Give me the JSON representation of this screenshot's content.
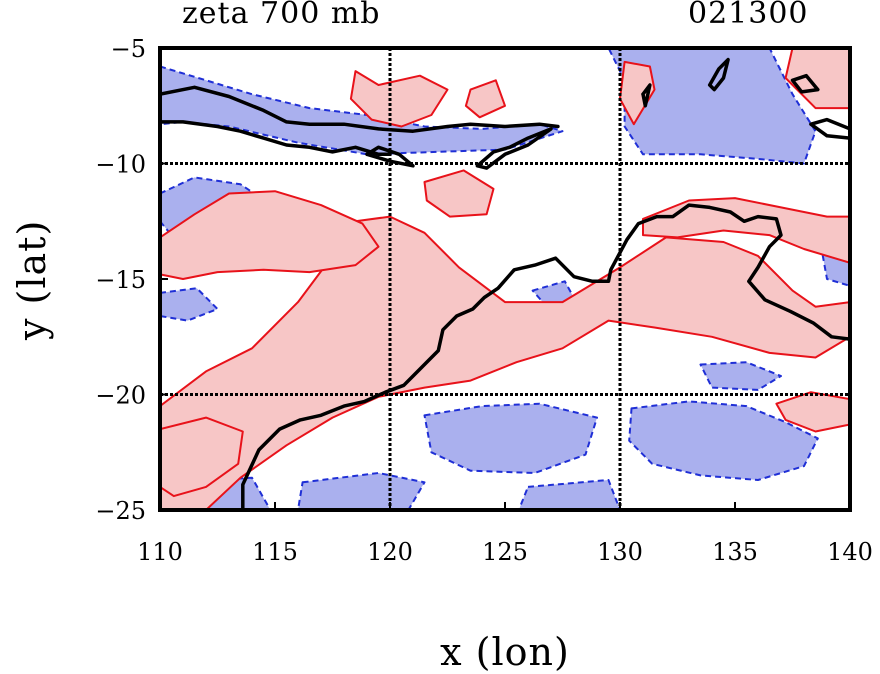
{
  "chart_data": {
    "type": "contour",
    "title_left": "zeta 700 mb",
    "title_right": "021300",
    "xlabel": "x (lon)",
    "ylabel": "y (lat)",
    "xlim": [
      110,
      140
    ],
    "ylim": [
      -25,
      -5
    ],
    "xticks": [
      110,
      115,
      120,
      125,
      130,
      135,
      140
    ],
    "yticks": [
      -5,
      -10,
      -15,
      -20,
      -25
    ],
    "gridlines_x": [
      120,
      130
    ],
    "gridlines_y": [
      -10,
      -20
    ],
    "grid": true,
    "colors": {
      "positive_contour": "#e8121a",
      "positive_fill": "#f7c6c6",
      "negative_contour": "#1f2fd6",
      "negative_fill": "#aab0ee",
      "coastline": "#000000"
    },
    "coastline": [
      [
        [
          113.6,
          -25
        ],
        [
          113.6,
          -23.9
        ],
        [
          114.3,
          -22.4
        ],
        [
          115.2,
          -21.5
        ],
        [
          116.1,
          -21.1
        ],
        [
          117.0,
          -20.9
        ],
        [
          118.0,
          -20.5
        ],
        [
          118.9,
          -20.3
        ],
        [
          119.8,
          -19.9
        ],
        [
          120.6,
          -19.6
        ],
        [
          121.3,
          -18.9
        ],
        [
          122.1,
          -18.1
        ],
        [
          122.3,
          -17.2
        ],
        [
          122.9,
          -16.6
        ],
        [
          123.6,
          -16.3
        ],
        [
          124.1,
          -15.8
        ],
        [
          124.7,
          -15.4
        ],
        [
          125.4,
          -14.6
        ],
        [
          126.3,
          -14.4
        ],
        [
          127.2,
          -14.1
        ],
        [
          128.0,
          -14.9
        ],
        [
          128.8,
          -15.1
        ],
        [
          129.5,
          -15.1
        ],
        [
          129.6,
          -14.6
        ],
        [
          130.3,
          -13.3
        ],
        [
          130.8,
          -12.6
        ],
        [
          131.6,
          -12.3
        ],
        [
          132.3,
          -12.3
        ],
        [
          133.0,
          -11.8
        ],
        [
          133.9,
          -11.9
        ],
        [
          134.8,
          -12.1
        ],
        [
          135.4,
          -12.5
        ],
        [
          136.0,
          -12.3
        ],
        [
          136.8,
          -12.4
        ],
        [
          137.0,
          -13.1
        ],
        [
          136.5,
          -13.6
        ],
        [
          136.0,
          -14.5
        ],
        [
          135.6,
          -15.1
        ],
        [
          136.3,
          -15.9
        ],
        [
          137.4,
          -16.4
        ],
        [
          138.4,
          -16.9
        ],
        [
          139.2,
          -17.5
        ],
        [
          140.0,
          -17.6
        ]
      ],
      [
        [
          110.0,
          -7.0
        ],
        [
          111.5,
          -6.7
        ],
        [
          113.0,
          -7.1
        ],
        [
          114.5,
          -7.7
        ],
        [
          115.5,
          -8.2
        ],
        [
          116.5,
          -8.3
        ],
        [
          118.0,
          -8.3
        ],
        [
          119.5,
          -8.5
        ],
        [
          121.0,
          -8.6
        ],
        [
          122.5,
          -8.4
        ],
        [
          123.5,
          -8.3
        ],
        [
          125.0,
          -8.4
        ],
        [
          126.5,
          -8.3
        ],
        [
          127.3,
          -8.4
        ]
      ],
      [
        [
          110.0,
          -8.2
        ],
        [
          111.0,
          -8.2
        ],
        [
          112.5,
          -8.4
        ],
        [
          113.5,
          -8.6
        ],
        [
          114.5,
          -8.9
        ],
        [
          115.5,
          -9.2
        ],
        [
          116.5,
          -9.3
        ],
        [
          117.5,
          -9.5
        ],
        [
          118.5,
          -9.3
        ],
        [
          119.5,
          -9.6
        ],
        [
          120.0,
          -9.6
        ]
      ],
      [
        [
          123.8,
          -10.1
        ],
        [
          124.5,
          -9.5
        ],
        [
          125.2,
          -9.3
        ],
        [
          126.0,
          -8.9
        ],
        [
          127.0,
          -8.5
        ],
        [
          126.0,
          -9.2
        ],
        [
          125.0,
          -9.6
        ],
        [
          124.2,
          -10.2
        ],
        [
          123.8,
          -10.1
        ]
      ],
      [
        [
          119.0,
          -9.6
        ],
        [
          120.0,
          -9.9
        ],
        [
          121.0,
          -10.1
        ],
        [
          120.4,
          -9.6
        ],
        [
          119.5,
          -9.3
        ],
        [
          119.0,
          -9.6
        ]
      ],
      [
        [
          131.0,
          -7.0
        ],
        [
          131.3,
          -6.6
        ],
        [
          131.1,
          -7.5
        ],
        [
          131.0,
          -7.0
        ]
      ],
      [
        [
          133.9,
          -6.6
        ],
        [
          134.3,
          -5.9
        ],
        [
          134.7,
          -5.5
        ],
        [
          134.5,
          -6.3
        ],
        [
          134.1,
          -6.8
        ],
        [
          133.9,
          -6.6
        ]
      ],
      [
        [
          138.3,
          -8.3
        ],
        [
          139.0,
          -8.1
        ],
        [
          140.0,
          -8.5
        ],
        [
          140.0,
          -8.9
        ],
        [
          139.0,
          -8.8
        ],
        [
          138.3,
          -8.3
        ]
      ],
      [
        [
          137.5,
          -6.4
        ],
        [
          138.1,
          -6.2
        ],
        [
          138.6,
          -6.8
        ],
        [
          137.9,
          -6.9
        ],
        [
          137.5,
          -6.4
        ]
      ]
    ],
    "positive_regions": [
      [
        [
          110,
          -25
        ],
        [
          110,
          -20.5
        ],
        [
          112,
          -19
        ],
        [
          114,
          -18
        ],
        [
          116,
          -16
        ],
        [
          117.5,
          -14
        ],
        [
          118.5,
          -12.5
        ],
        [
          120,
          -12.3
        ],
        [
          121.5,
          -13
        ],
        [
          123,
          -14.5
        ],
        [
          125,
          -16
        ],
        [
          127.5,
          -16
        ],
        [
          130,
          -14.5
        ],
        [
          132,
          -13.2
        ],
        [
          134.5,
          -13.4
        ],
        [
          136,
          -14
        ],
        [
          137.5,
          -15.5
        ],
        [
          138.5,
          -16.2
        ],
        [
          140,
          -16
        ],
        [
          140,
          -17.5
        ],
        [
          138.5,
          -18.4
        ],
        [
          136.5,
          -18.2
        ],
        [
          134,
          -17.5
        ],
        [
          131.5,
          -17.1
        ],
        [
          129.5,
          -16.8
        ],
        [
          127.5,
          -18
        ],
        [
          125.5,
          -18.6
        ],
        [
          123.5,
          -19.4
        ],
        [
          121.5,
          -19.7
        ],
        [
          119.5,
          -20.1
        ],
        [
          117.5,
          -21
        ],
        [
          115.5,
          -22.2
        ],
        [
          113.5,
          -23.6
        ],
        [
          112,
          -25
        ]
      ],
      [
        [
          110,
          -13.2
        ],
        [
          111.5,
          -12.2
        ],
        [
          113,
          -11.3
        ],
        [
          115,
          -11.2
        ],
        [
          117,
          -11.8
        ],
        [
          118.8,
          -12.6
        ],
        [
          119.5,
          -13.6
        ],
        [
          118.5,
          -14.4
        ],
        [
          116.5,
          -14.7
        ],
        [
          114.5,
          -14.6
        ],
        [
          112.5,
          -14.7
        ],
        [
          111,
          -15
        ],
        [
          110,
          -14.8
        ]
      ],
      [
        [
          131,
          -12.4
        ],
        [
          133,
          -11.6
        ],
        [
          135,
          -11.5
        ],
        [
          137,
          -11.9
        ],
        [
          139,
          -12.3
        ],
        [
          140,
          -12.3
        ],
        [
          140,
          -14.3
        ],
        [
          138,
          -13.7
        ],
        [
          136.5,
          -13.1
        ],
        [
          134.5,
          -12.9
        ],
        [
          132.5,
          -13.2
        ],
        [
          131,
          -13.1
        ]
      ],
      [
        [
          118.5,
          -6
        ],
        [
          119.5,
          -6.6
        ],
        [
          121.3,
          -6.2
        ],
        [
          122.5,
          -6.8
        ],
        [
          121.8,
          -7.9
        ],
        [
          120.5,
          -8.4
        ],
        [
          119.2,
          -8.1
        ],
        [
          118.3,
          -7.2
        ]
      ],
      [
        [
          123.5,
          -6.8
        ],
        [
          124.6,
          -6.4
        ],
        [
          125,
          -7.5
        ],
        [
          123.9,
          -8.0
        ],
        [
          123.3,
          -7.5
        ]
      ],
      [
        [
          130.2,
          -5.6
        ],
        [
          131.3,
          -5.8
        ],
        [
          131.5,
          -6.8
        ],
        [
          130.6,
          -8.3
        ],
        [
          130.0,
          -7.2
        ]
      ],
      [
        [
          137.5,
          -5
        ],
        [
          140,
          -5
        ],
        [
          140,
          -7.6
        ],
        [
          138.5,
          -7.6
        ],
        [
          137.2,
          -6.3
        ]
      ],
      [
        [
          121.5,
          -10.8
        ],
        [
          123.2,
          -10.3
        ],
        [
          124.5,
          -11.1
        ],
        [
          124.2,
          -12.2
        ],
        [
          122.6,
          -12.3
        ],
        [
          121.6,
          -11.6
        ]
      ],
      [
        [
          110,
          -21.5
        ],
        [
          112,
          -21
        ],
        [
          113.6,
          -21.6
        ],
        [
          113.4,
          -23
        ],
        [
          112,
          -24
        ],
        [
          110.6,
          -24.4
        ],
        [
          110,
          -24
        ]
      ],
      [
        [
          136.8,
          -20.4
        ],
        [
          138.3,
          -19.9
        ],
        [
          140,
          -20.2
        ],
        [
          140,
          -21.3
        ],
        [
          138.5,
          -21.6
        ],
        [
          137.2,
          -21.1
        ]
      ]
    ],
    "negative_regions": [
      [
        [
          110,
          -5.8
        ],
        [
          112,
          -6.4
        ],
        [
          114,
          -7.0
        ],
        [
          116.5,
          -7.6
        ],
        [
          119,
          -7.9
        ],
        [
          121.5,
          -8.4
        ],
        [
          124,
          -8.5
        ],
        [
          126.5,
          -8.3
        ],
        [
          127.5,
          -8.6
        ],
        [
          125,
          -9.4
        ],
        [
          122,
          -9.5
        ],
        [
          119,
          -9.6
        ],
        [
          116,
          -9.1
        ],
        [
          113,
          -8.4
        ],
        [
          111,
          -8.2
        ],
        [
          110,
          -8.3
        ]
      ],
      [
        [
          110,
          -11.3
        ],
        [
          111.5,
          -10.6
        ],
        [
          113.5,
          -10.9
        ],
        [
          115,
          -11.9
        ],
        [
          116.8,
          -12.8
        ],
        [
          117.5,
          -13.9
        ],
        [
          116,
          -14.3
        ],
        [
          113.8,
          -14
        ],
        [
          112,
          -13.4
        ],
        [
          110.5,
          -13.1
        ],
        [
          110,
          -12.5
        ]
      ],
      [
        [
          129.5,
          -5
        ],
        [
          136.5,
          -5
        ],
        [
          137.5,
          -7
        ],
        [
          138.5,
          -8.6
        ],
        [
          138,
          -10
        ],
        [
          136,
          -9.8
        ],
        [
          133.5,
          -9.6
        ],
        [
          131,
          -9.6
        ],
        [
          130.2,
          -8.4
        ],
        [
          130.2,
          -6.4
        ]
      ],
      [
        [
          133.5,
          -18.7
        ],
        [
          135.5,
          -18.6
        ],
        [
          137,
          -19.2
        ],
        [
          136,
          -19.8
        ],
        [
          134,
          -19.7
        ]
      ],
      [
        [
          121.5,
          -20.9
        ],
        [
          124,
          -20.5
        ],
        [
          126.5,
          -20.4
        ],
        [
          129,
          -21
        ],
        [
          128.5,
          -22.6
        ],
        [
          126.3,
          -23.4
        ],
        [
          123.5,
          -23.3
        ],
        [
          121.8,
          -22.5
        ]
      ],
      [
        [
          130.5,
          -20.6
        ],
        [
          133,
          -20.3
        ],
        [
          135.5,
          -20.5
        ],
        [
          137.2,
          -21.2
        ],
        [
          138.6,
          -21.9
        ],
        [
          138,
          -23.1
        ],
        [
          136,
          -23.7
        ],
        [
          133.5,
          -23.5
        ],
        [
          131.4,
          -23
        ],
        [
          130.4,
          -22
        ]
      ],
      [
        [
          126,
          -24
        ],
        [
          129.5,
          -23.7
        ],
        [
          130,
          -25
        ],
        [
          125.6,
          -25
        ]
      ],
      [
        [
          111.2,
          -23.8
        ],
        [
          114,
          -23.6
        ],
        [
          114.8,
          -25
        ],
        [
          111,
          -25
        ]
      ],
      [
        [
          116.2,
          -23.8
        ],
        [
          119.5,
          -23.4
        ],
        [
          121.5,
          -23.8
        ],
        [
          120.8,
          -25
        ],
        [
          116,
          -25
        ]
      ],
      [
        [
          138.8,
          -13.9
        ],
        [
          140,
          -13.6
        ],
        [
          140,
          -15.3
        ],
        [
          139,
          -15
        ]
      ],
      [
        [
          110,
          -15.6
        ],
        [
          111.6,
          -15.4
        ],
        [
          112.5,
          -16.3
        ],
        [
          111.2,
          -16.8
        ],
        [
          110,
          -16.6
        ]
      ],
      [
        [
          126.2,
          -15.5
        ],
        [
          127.6,
          -15.1
        ],
        [
          128.1,
          -16
        ],
        [
          127,
          -16.4
        ]
      ]
    ]
  }
}
